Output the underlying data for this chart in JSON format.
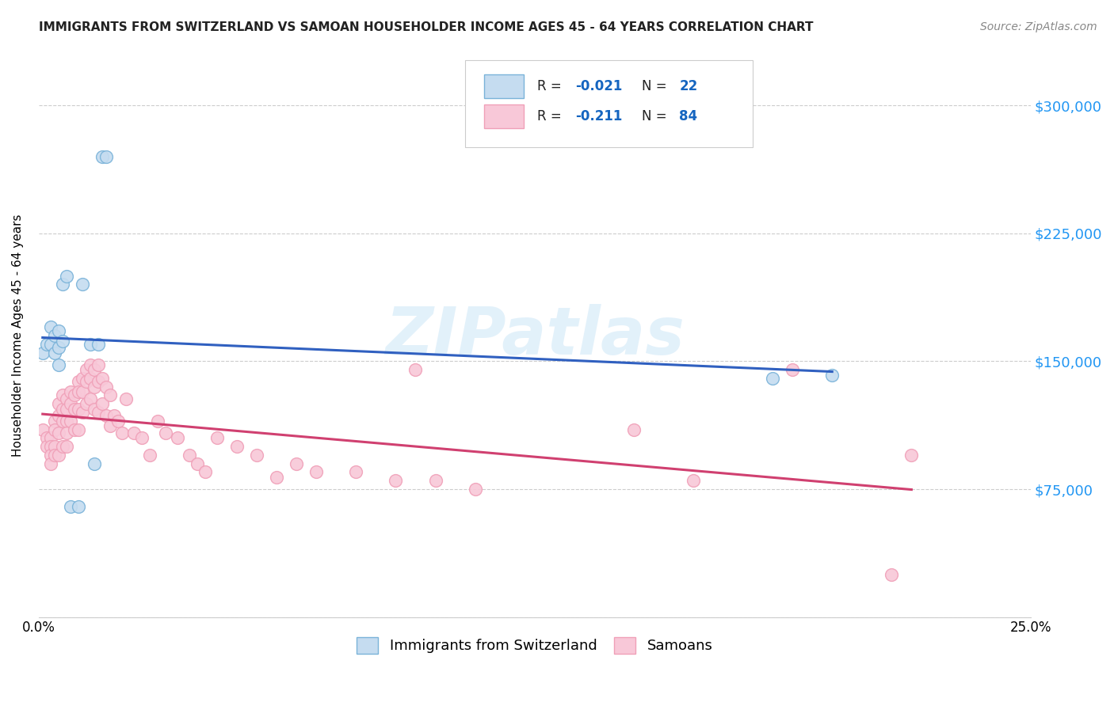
{
  "title": "IMMIGRANTS FROM SWITZERLAND VS SAMOAN HOUSEHOLDER INCOME AGES 45 - 64 YEARS CORRELATION CHART",
  "source": "Source: ZipAtlas.com",
  "xlabel_label": "Immigrants from Switzerland",
  "xlabel2_label": "Samoans",
  "ylabel": "Householder Income Ages 45 - 64 years",
  "xmin": 0.0,
  "xmax": 0.25,
  "ymin": 0,
  "ymax": 330000,
  "yticks": [
    0,
    75000,
    150000,
    225000,
    300000
  ],
  "ytick_labels": [
    "",
    "$75,000",
    "$150,000",
    "$225,000",
    "$300,000"
  ],
  "xticks": [
    0.0,
    0.05,
    0.1,
    0.15,
    0.2,
    0.25
  ],
  "xtick_labels": [
    "0.0%",
    "",
    "",
    "",
    "",
    "25.0%"
  ],
  "swiss_color": "#7ab3d9",
  "swiss_face_color": "#c5dcf0",
  "samoan_color": "#f0a0b8",
  "samoan_face_color": "#f8c8d8",
  "trend_swiss_color": "#3060c0",
  "trend_samoan_color": "#d04070",
  "watermark": "ZIPatlas",
  "swiss_x": [
    0.001,
    0.002,
    0.003,
    0.003,
    0.004,
    0.004,
    0.005,
    0.005,
    0.005,
    0.006,
    0.006,
    0.007,
    0.008,
    0.01,
    0.011,
    0.013,
    0.014,
    0.015,
    0.016,
    0.017,
    0.185,
    0.2
  ],
  "swiss_y": [
    155000,
    160000,
    170000,
    160000,
    165000,
    155000,
    168000,
    158000,
    148000,
    162000,
    195000,
    200000,
    65000,
    65000,
    195000,
    160000,
    90000,
    160000,
    270000,
    270000,
    140000,
    142000
  ],
  "samoan_x": [
    0.001,
    0.002,
    0.002,
    0.003,
    0.003,
    0.003,
    0.003,
    0.004,
    0.004,
    0.004,
    0.004,
    0.005,
    0.005,
    0.005,
    0.005,
    0.006,
    0.006,
    0.006,
    0.006,
    0.007,
    0.007,
    0.007,
    0.007,
    0.007,
    0.008,
    0.008,
    0.008,
    0.009,
    0.009,
    0.009,
    0.01,
    0.01,
    0.01,
    0.01,
    0.011,
    0.011,
    0.011,
    0.012,
    0.012,
    0.012,
    0.013,
    0.013,
    0.013,
    0.014,
    0.014,
    0.014,
    0.015,
    0.015,
    0.015,
    0.016,
    0.016,
    0.017,
    0.017,
    0.018,
    0.018,
    0.019,
    0.02,
    0.021,
    0.022,
    0.024,
    0.026,
    0.028,
    0.03,
    0.032,
    0.035,
    0.038,
    0.04,
    0.042,
    0.045,
    0.05,
    0.055,
    0.06,
    0.065,
    0.07,
    0.08,
    0.09,
    0.095,
    0.1,
    0.11,
    0.15,
    0.165,
    0.19,
    0.215,
    0.22
  ],
  "samoan_y": [
    110000,
    105000,
    100000,
    105000,
    100000,
    95000,
    90000,
    115000,
    110000,
    100000,
    95000,
    125000,
    118000,
    108000,
    95000,
    130000,
    122000,
    115000,
    100000,
    128000,
    122000,
    115000,
    108000,
    100000,
    132000,
    125000,
    115000,
    130000,
    122000,
    110000,
    138000,
    132000,
    122000,
    110000,
    140000,
    132000,
    120000,
    145000,
    138000,
    125000,
    148000,
    140000,
    128000,
    145000,
    135000,
    122000,
    148000,
    138000,
    120000,
    140000,
    125000,
    135000,
    118000,
    130000,
    112000,
    118000,
    115000,
    108000,
    128000,
    108000,
    105000,
    95000,
    115000,
    108000,
    105000,
    95000,
    90000,
    85000,
    105000,
    100000,
    95000,
    82000,
    90000,
    85000,
    85000,
    80000,
    145000,
    80000,
    75000,
    110000,
    80000,
    145000,
    25000,
    95000
  ]
}
